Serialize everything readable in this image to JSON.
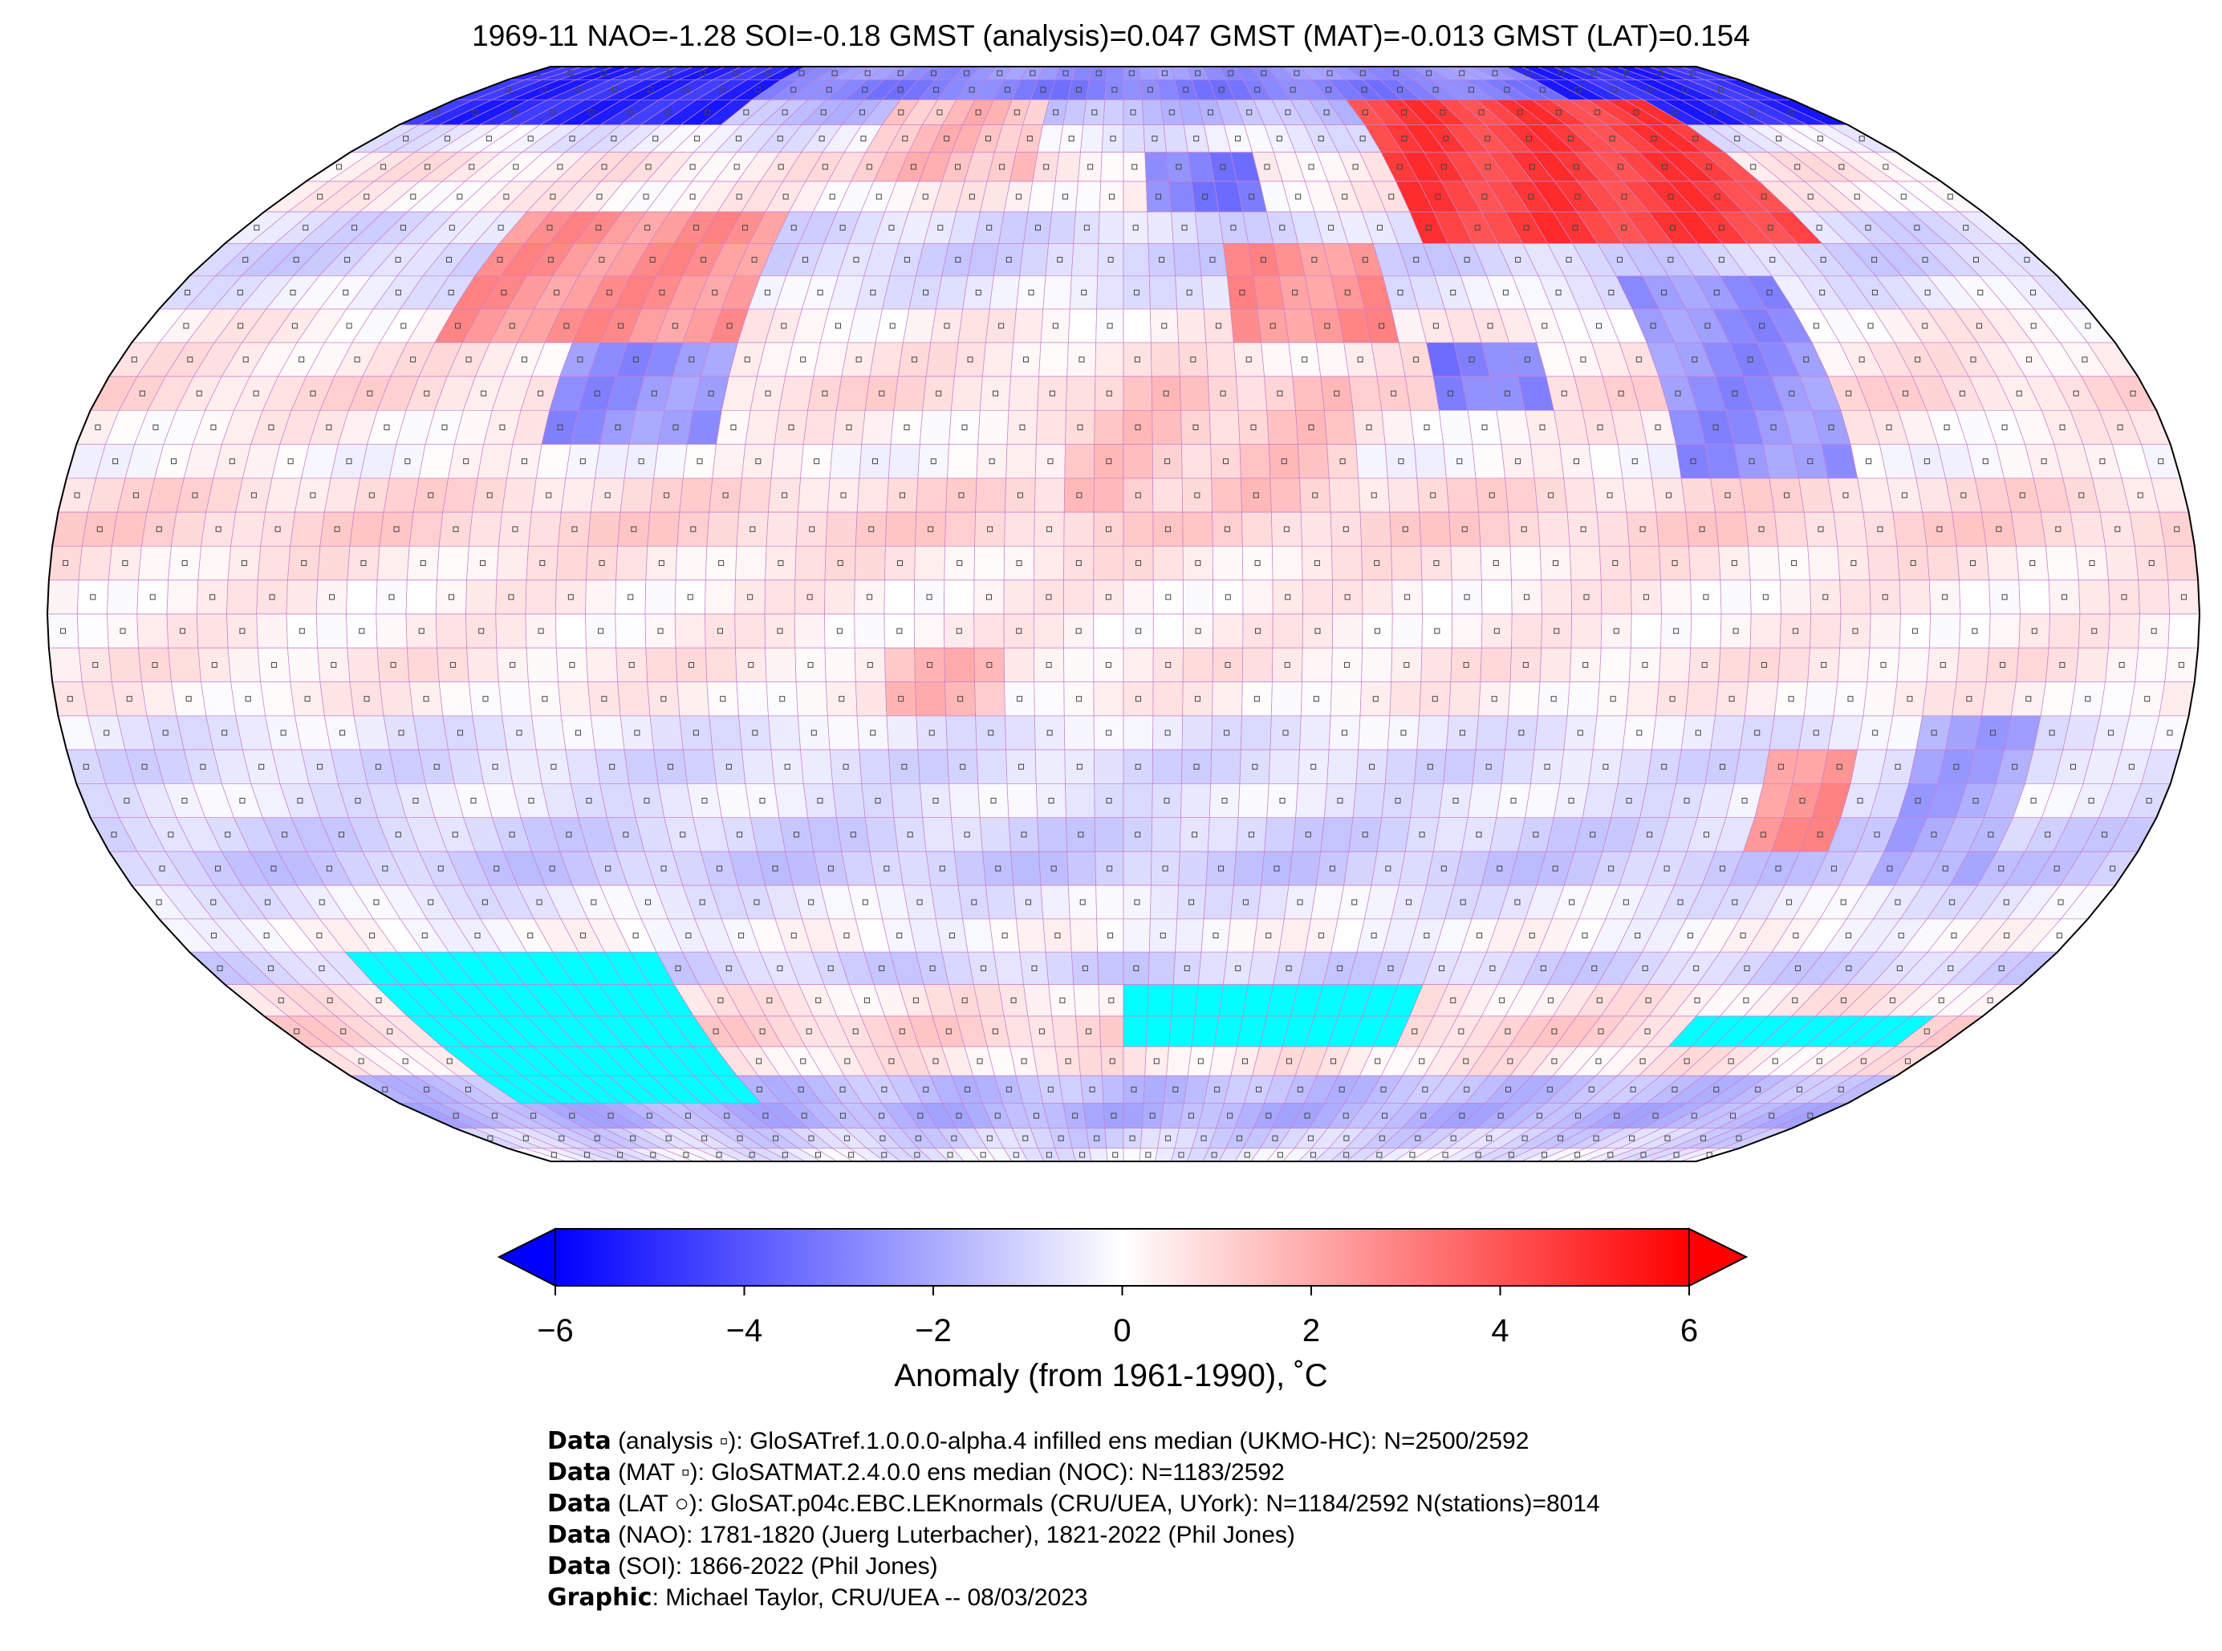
{
  "chart_data": {
    "type": "heatmap",
    "title": "1969-11 NAO=-1.28 SOI=-0.18 GMST (analysis)=0.047 GMST (MAT)=-0.013 GMST (LAT)=0.154",
    "projection": "Robinson",
    "grid": {
      "lon_step": 5,
      "lat_step": 5
    },
    "colormap": {
      "name": "bwr",
      "vmin": -6,
      "vmax": 6,
      "low": "#0000ff",
      "mid": "#ffffff",
      "high": "#ff0000",
      "missing": "#00ffff",
      "extend": "both"
    },
    "colorbar": {
      "ticks": [
        "−6",
        "−4",
        "−2",
        "0",
        "2",
        "4",
        "6"
      ],
      "tick_values": [
        -6,
        -4,
        -2,
        0,
        2,
        4,
        6
      ],
      "label": "Anomaly (from 1961-1990), ˚C"
    },
    "zonal_anomaly_north_to_south": [
      -2.5,
      -3,
      -1.5,
      -0.5,
      0.5,
      0.3,
      -0.8,
      -1,
      -0.5,
      0.3,
      0.5,
      0.8,
      0.3,
      0,
      0.8,
      1,
      0.5,
      0.3,
      0.3,
      0.5,
      0.3,
      -0.5,
      -0.8,
      -0.5,
      -1,
      -1.2,
      -0.5,
      0,
      -1,
      0.5,
      1,
      0.5,
      -1.5,
      -1.8,
      -1,
      -0.5
    ],
    "regional_anomalies": [
      {
        "lon": [
          -180,
          -100
        ],
        "lat": [
          75,
          90
        ],
        "value": -5
      },
      {
        "lon": [
          120,
          180
        ],
        "lat": [
          75,
          90
        ],
        "value": -5
      },
      {
        "lon": [
          60,
          140
        ],
        "lat": [
          55,
          80
        ],
        "value": 4.5
      },
      {
        "lon": [
          -125,
          -70
        ],
        "lat": [
          40,
          60
        ],
        "value": 2.5
      },
      {
        "lon": [
          -100,
          -70
        ],
        "lat": [
          25,
          40
        ],
        "value": -2.5
      },
      {
        "lon": [
          20,
          50
        ],
        "lat": [
          40,
          55
        ],
        "value": 2.5
      },
      {
        "lon": [
          5,
          30
        ],
        "lat": [
          60,
          70
        ],
        "value": -3
      },
      {
        "lon": [
          95,
          125
        ],
        "lat": [
          20,
          50
        ],
        "value": -2.5
      },
      {
        "lon": [
          55,
          75
        ],
        "lat": [
          30,
          40
        ],
        "value": -3
      },
      {
        "lon": [
          -60,
          -20
        ],
        "lat": [
          65,
          80
        ],
        "value": 1.5
      },
      {
        "lon": [
          -10,
          40
        ],
        "lat": [
          15,
          35
        ],
        "value": 1.2
      },
      {
        "lon": [
          135,
          155
        ],
        "lat": [
          -40,
          -15
        ],
        "value": -2
      },
      {
        "lon": [
          112,
          125
        ],
        "lat": [
          -35,
          -20
        ],
        "value": 2.5
      },
      {
        "lon": [
          -40,
          -20
        ],
        "lat": [
          -15,
          -5
        ],
        "value": 1.5
      }
    ],
    "missing_regions": [
      {
        "lon": [
          -150,
          -90
        ],
        "lat": [
          -75,
          -50
        ]
      },
      {
        "lon": [
          0,
          60
        ],
        "lat": [
          -65,
          -55
        ]
      },
      {
        "lon": [
          120,
          170
        ],
        "lat": [
          -65,
          -60
        ]
      }
    ]
  },
  "footer": [
    {
      "bold": "Data",
      "text": " (analysis ▫): GloSATref.1.0.0.0-alpha.4 infilled ens median (UKMO-HC): N=2500/2592"
    },
    {
      "bold": "Data",
      "text": " (MAT ▫): GloSATMAT.2.4.0.0 ens median (NOC): N=1183/2592"
    },
    {
      "bold": "Data",
      "text": " (LAT ○): GloSAT.p04c.EBC.LEKnormals (CRU/UEA, UYork): N=1184/2592 N(stations)=8014"
    },
    {
      "bold": "Data",
      "text": " (NAO): 1781-1820 (Juerg Luterbacher), 1821-2022 (Phil Jones)"
    },
    {
      "bold": "Data",
      "text": " (SOI): 1866-2022 (Phil Jones)"
    },
    {
      "bold": "Graphic",
      "text": ": Michael Taylor, CRU/UEA -- 08/03/2023"
    }
  ]
}
